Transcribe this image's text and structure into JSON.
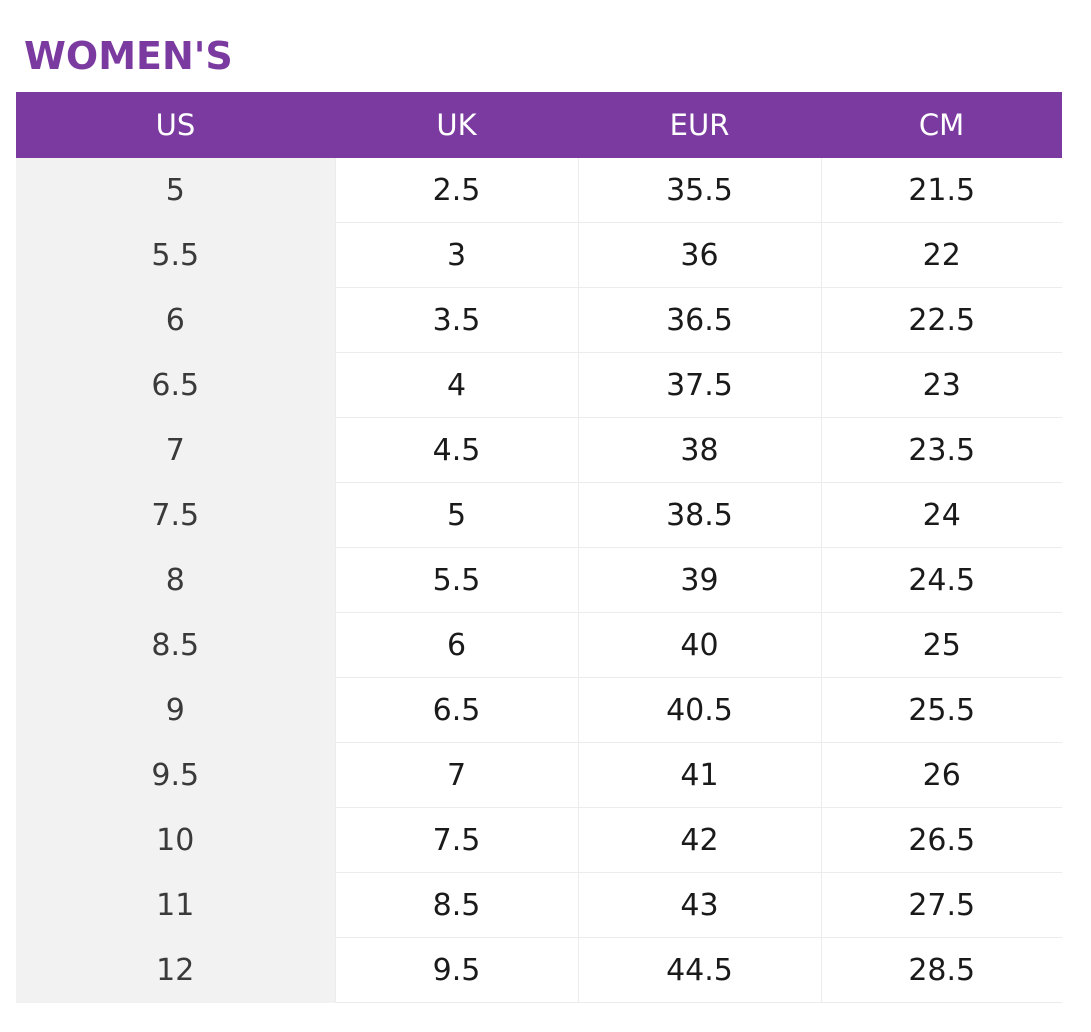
{
  "title": "WOMEN'S",
  "colors": {
    "accent": "#7B3AA0",
    "header_text": "#ffffff",
    "us_column_bg": "#f2f2f2"
  },
  "table": {
    "headers": [
      "US",
      "UK",
      "EUR",
      "CM"
    ],
    "rows": [
      [
        "5",
        "2.5",
        "35.5",
        "21.5"
      ],
      [
        "5.5",
        "3",
        "36",
        "22"
      ],
      [
        "6",
        "3.5",
        "36.5",
        "22.5"
      ],
      [
        "6.5",
        "4",
        "37.5",
        "23"
      ],
      [
        "7",
        "4.5",
        "38",
        "23.5"
      ],
      [
        "7.5",
        "5",
        "38.5",
        "24"
      ],
      [
        "8",
        "5.5",
        "39",
        "24.5"
      ],
      [
        "8.5",
        "6",
        "40",
        "25"
      ],
      [
        "9",
        "6.5",
        "40.5",
        "25.5"
      ],
      [
        "9.5",
        "7",
        "41",
        "26"
      ],
      [
        "10",
        "7.5",
        "42",
        "26.5"
      ],
      [
        "11",
        "8.5",
        "43",
        "27.5"
      ],
      [
        "12",
        "9.5",
        "44.5",
        "28.5"
      ]
    ]
  }
}
